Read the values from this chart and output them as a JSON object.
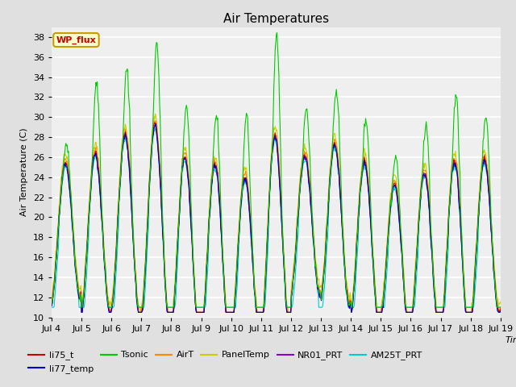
{
  "title": "Air Temperatures",
  "xlabel": "Time",
  "ylabel": "Air Temperature (C)",
  "ylim": [
    10,
    39
  ],
  "yticks": [
    10,
    12,
    14,
    16,
    18,
    20,
    22,
    24,
    26,
    28,
    30,
    32,
    34,
    36,
    38
  ],
  "x_tick_days": [
    4,
    5,
    6,
    7,
    8,
    9,
    10,
    11,
    12,
    13,
    14,
    15,
    16,
    17,
    18,
    19
  ],
  "legend_entries": [
    {
      "label": "li75_t",
      "color": "#cc0000"
    },
    {
      "label": "li77_temp",
      "color": "#0000cc"
    },
    {
      "label": "Tsonic",
      "color": "#00cc00"
    },
    {
      "label": "AirT",
      "color": "#ff8800"
    },
    {
      "label": "PanelTemp",
      "color": "#cccc00"
    },
    {
      "label": "NR01_PRT",
      "color": "#8800cc"
    },
    {
      "label": "AM25T_PRT",
      "color": "#00cccc"
    }
  ],
  "wp_flux_label": "WP_flux",
  "wp_flux_bg": "#ffffcc",
  "wp_flux_text_color": "#cc0000",
  "wp_flux_border_color": "#cc9900",
  "background_color": "#e0e0e0",
  "plot_bg_color": "#efefef",
  "grid_color": "#ffffff",
  "title_fontsize": 11,
  "axis_label_fontsize": 8,
  "tick_fontsize": 8,
  "legend_fontsize": 8
}
